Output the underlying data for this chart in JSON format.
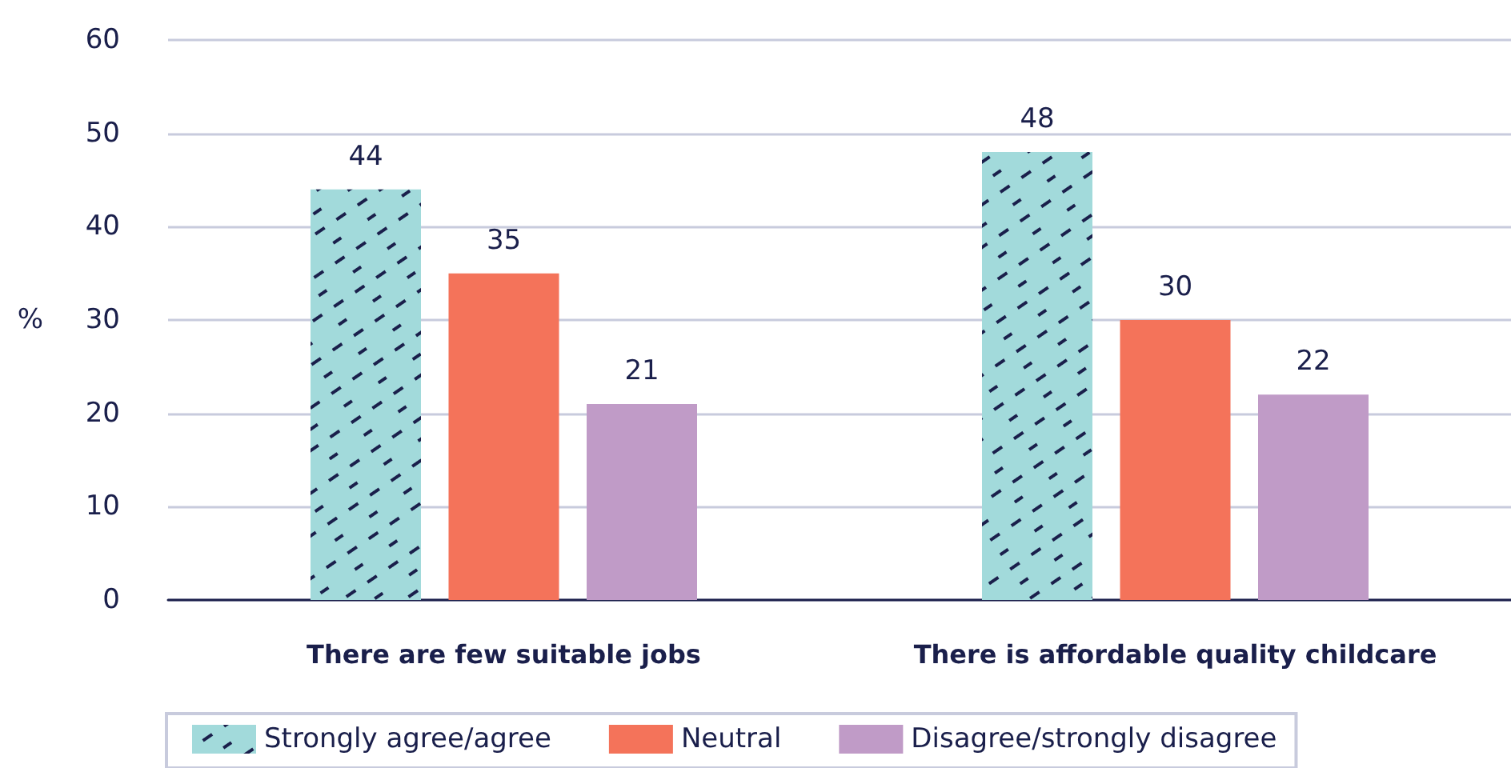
{
  "chart_data": {
    "type": "bar",
    "ylabel": "%",
    "categories": [
      "There are few suitable jobs",
      "There is affordable quality childcare"
    ],
    "series": [
      {
        "name": "Strongly agree/agree",
        "color": "#a2dadb",
        "values": [
          44,
          48
        ]
      },
      {
        "name": "Neutral",
        "color": "#f4735a",
        "values": [
          35,
          30
        ]
      },
      {
        "name": "Disagree/strongly disagree",
        "color": "#c09bc7",
        "values": [
          21,
          22
        ]
      }
    ],
    "ylim": [
      0,
      60
    ],
    "yticks": [
      0,
      10,
      20,
      30,
      40,
      50,
      60
    ],
    "grid": "y",
    "legend": "bottom",
    "data_labels": true
  }
}
